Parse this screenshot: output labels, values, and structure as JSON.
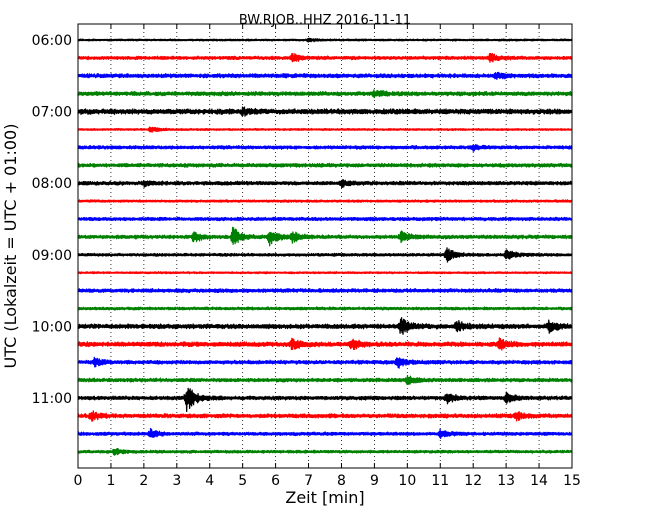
{
  "chart_data": {
    "type": "line",
    "title": "BW.RJOB..HHZ 2016-11-11",
    "xlabel": "Zeit  [min]",
    "ylabel": "UTC (Lokalzeit = UTC + 01:00)",
    "xlim": [
      0,
      15
    ],
    "x_ticks": [
      "0",
      "1",
      "2",
      "3",
      "4",
      "5",
      "6",
      "7",
      "8",
      "9",
      "10",
      "11",
      "12",
      "13",
      "14",
      "15"
    ],
    "y_tick_labels": [
      "06:00",
      "07:00",
      "08:00",
      "09:00",
      "10:00",
      "11:00"
    ],
    "trace_colors": [
      "#000000",
      "#ff0000",
      "#0000ff",
      "#008000"
    ],
    "grid": "vertical dotted lines at each minute",
    "series": [
      {
        "start": "06:00",
        "color": "#000000",
        "base_amplitude": 1.0,
        "events": [
          [
            7.0,
            1.4
          ]
        ]
      },
      {
        "start": "06:15",
        "color": "#ff0000",
        "base_amplitude": 1.8,
        "events": [
          [
            6.5,
            4
          ],
          [
            12.5,
            4
          ]
        ]
      },
      {
        "start": "06:30",
        "color": "#0000ff",
        "base_amplitude": 2.2,
        "events": [
          [
            12.7,
            3
          ]
        ]
      },
      {
        "start": "06:45",
        "color": "#008000",
        "base_amplitude": 2.2,
        "events": [
          [
            9.0,
            3
          ]
        ]
      },
      {
        "start": "07:00",
        "color": "#000000",
        "base_amplitude": 2.8,
        "events": [
          [
            5.0,
            3
          ]
        ]
      },
      {
        "start": "07:15",
        "color": "#ff0000",
        "base_amplitude": 1.0,
        "events": [
          [
            2.2,
            3
          ]
        ]
      },
      {
        "start": "07:30",
        "color": "#0000ff",
        "base_amplitude": 1.8,
        "events": [
          [
            12.0,
            2.5
          ]
        ]
      },
      {
        "start": "07:45",
        "color": "#008000",
        "base_amplitude": 2.0,
        "events": []
      },
      {
        "start": "08:00",
        "color": "#000000",
        "base_amplitude": 2.0,
        "events": [
          [
            2.0,
            2.8
          ],
          [
            8.0,
            3
          ]
        ]
      },
      {
        "start": "08:15",
        "color": "#ff0000",
        "base_amplitude": 1.3,
        "events": []
      },
      {
        "start": "08:30",
        "color": "#0000ff",
        "base_amplitude": 1.8,
        "events": []
      },
      {
        "start": "08:45",
        "color": "#008000",
        "base_amplitude": 2.0,
        "events": [
          [
            3.5,
            5
          ],
          [
            4.7,
            9
          ],
          [
            5.8,
            8
          ],
          [
            6.5,
            5
          ],
          [
            9.8,
            5
          ]
        ]
      },
      {
        "start": "09:00",
        "color": "#000000",
        "base_amplitude": 1.5,
        "events": [
          [
            11.2,
            7
          ],
          [
            13.0,
            5
          ]
        ]
      },
      {
        "start": "09:15",
        "color": "#ff0000",
        "base_amplitude": 1.0,
        "events": []
      },
      {
        "start": "09:30",
        "color": "#0000ff",
        "base_amplitude": 2.0,
        "events": []
      },
      {
        "start": "09:45",
        "color": "#008000",
        "base_amplitude": 1.5,
        "events": []
      },
      {
        "start": "10:00",
        "color": "#000000",
        "base_amplitude": 2.5,
        "events": [
          [
            9.8,
            9
          ],
          [
            11.5,
            5
          ],
          [
            14.3,
            5
          ]
        ]
      },
      {
        "start": "10:15",
        "color": "#ff0000",
        "base_amplitude": 2.5,
        "events": [
          [
            6.5,
            5
          ],
          [
            8.3,
            5
          ],
          [
            12.8,
            5
          ]
        ]
      },
      {
        "start": "10:30",
        "color": "#0000ff",
        "base_amplitude": 2.0,
        "events": [
          [
            0.5,
            4
          ],
          [
            9.7,
            5
          ]
        ]
      },
      {
        "start": "10:45",
        "color": "#008000",
        "base_amplitude": 2.0,
        "events": [
          [
            10.0,
            4
          ]
        ]
      },
      {
        "start": "11:00",
        "color": "#000000",
        "base_amplitude": 2.0,
        "events": [
          [
            3.3,
            14
          ],
          [
            11.2,
            5
          ],
          [
            13.0,
            5
          ]
        ]
      },
      {
        "start": "11:15",
        "color": "#ff0000",
        "base_amplitude": 2.2,
        "events": [
          [
            0.4,
            4
          ],
          [
            13.3,
            4
          ]
        ]
      },
      {
        "start": "11:30",
        "color": "#0000ff",
        "base_amplitude": 1.8,
        "events": [
          [
            2.2,
            4
          ],
          [
            11.0,
            4
          ]
        ]
      },
      {
        "start": "11:45",
        "color": "#008000",
        "base_amplitude": 1.5,
        "events": [
          [
            1.1,
            3
          ]
        ]
      }
    ]
  }
}
